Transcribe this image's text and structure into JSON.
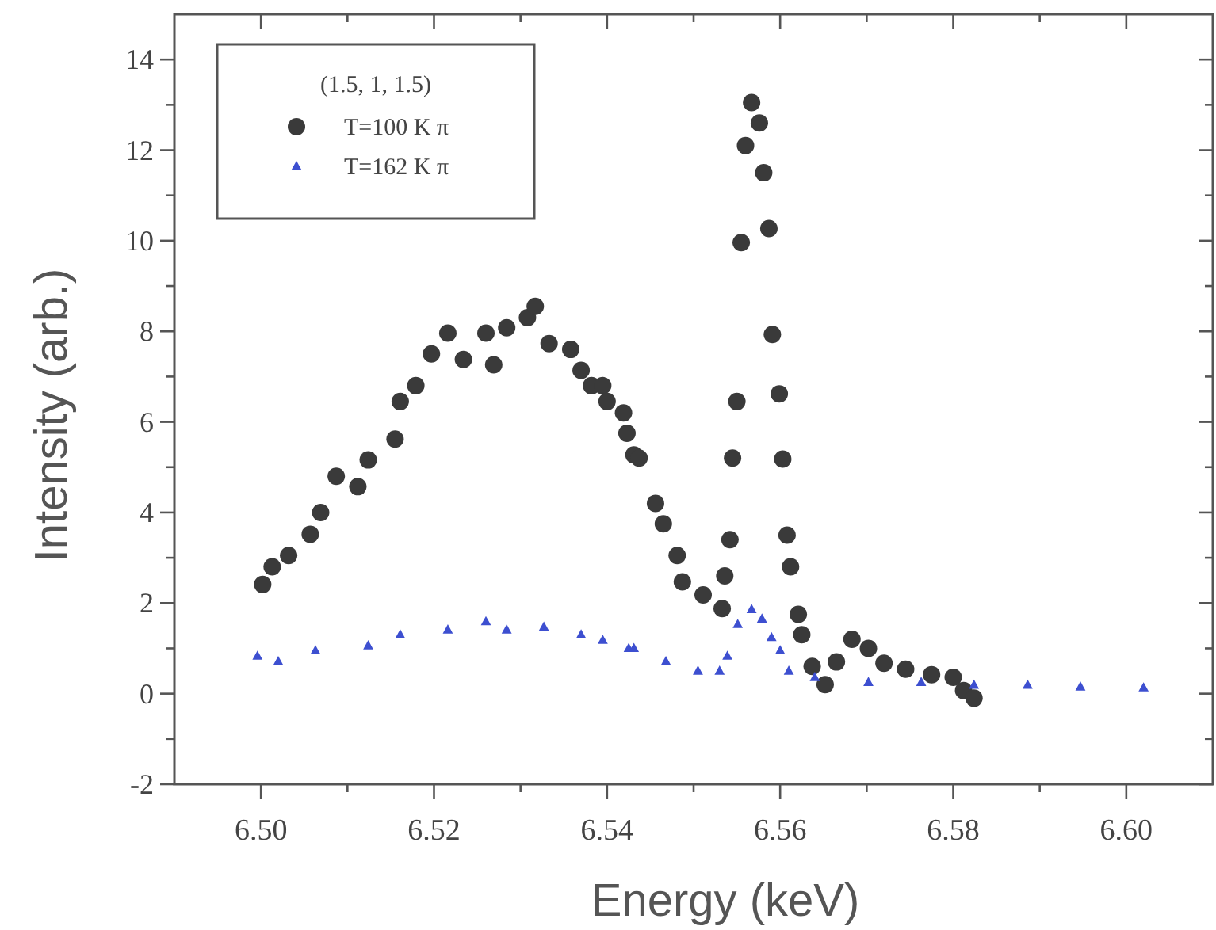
{
  "chart_data": {
    "type": "scatter",
    "xlabel": "Energy (keV)",
    "ylabel": "Intensity (arb.)",
    "legend_title": "(1.5, 1, 1.5)",
    "legend": "top left",
    "grid": false,
    "xlim": [
      6.49,
      6.61
    ],
    "ylim": [
      -2,
      15
    ],
    "xticks": [
      {
        "value": 6.5,
        "label": "6.50"
      },
      {
        "value": 6.51,
        "label": null
      },
      {
        "value": 6.52,
        "label": "6.52"
      },
      {
        "value": 6.53,
        "label": null
      },
      {
        "value": 6.54,
        "label": "6.54"
      },
      {
        "value": 6.55,
        "label": null
      },
      {
        "value": 6.56,
        "label": "6.56"
      },
      {
        "value": 6.57,
        "label": null
      },
      {
        "value": 6.58,
        "label": "6.58"
      },
      {
        "value": 6.59,
        "label": null
      },
      {
        "value": 6.6,
        "label": "6.60"
      }
    ],
    "yticks": [
      -2,
      {
        "value": -1,
        "label": null
      },
      0,
      {
        "value": 1,
        "label": null
      },
      2,
      {
        "value": 3,
        "label": null
      },
      4,
      {
        "value": 5,
        "label": null
      },
      6,
      {
        "value": 7,
        "label": null
      },
      8,
      {
        "value": 9,
        "label": null
      },
      10,
      {
        "value": 11,
        "label": null
      },
      12,
      {
        "value": 13,
        "label": null
      },
      14
    ],
    "series": [
      {
        "name": "T=100 K π",
        "color": "#3a3a3a",
        "marker": "circle",
        "x": [
          6.5002,
          6.5013,
          6.5032,
          6.5057,
          6.5069,
          6.5087,
          6.5112,
          6.5124,
          6.5155,
          6.5161,
          6.5179,
          6.5197,
          6.5216,
          6.5234,
          6.526,
          6.5269,
          6.5284,
          6.5308,
          6.5317,
          6.5333,
          6.5358,
          6.537,
          6.5382,
          6.5395,
          6.54,
          6.5419,
          6.5423,
          6.5431,
          6.5437,
          6.5456,
          6.5465,
          6.5481,
          6.5487,
          6.5511,
          6.5533,
          6.5536,
          6.5542,
          6.5545,
          6.555,
          6.5555,
          6.556,
          6.5567,
          6.5576,
          6.5581,
          6.5587,
          6.5591,
          6.5599,
          6.5603,
          6.5608,
          6.5612,
          6.5621,
          6.5625,
          6.5637,
          6.5652,
          6.5665,
          6.5683,
          6.5702,
          6.572,
          6.5745,
          6.5775,
          6.58,
          6.5812,
          6.5824
        ],
        "values": [
          2.41,
          2.8,
          3.05,
          3.52,
          4.0,
          4.8,
          4.57,
          5.16,
          5.62,
          6.45,
          6.8,
          7.5,
          7.96,
          7.38,
          7.96,
          7.26,
          8.08,
          8.3,
          8.55,
          7.73,
          7.6,
          7.14,
          6.8,
          6.8,
          6.45,
          6.2,
          5.75,
          5.27,
          5.2,
          4.2,
          3.75,
          3.05,
          2.47,
          2.18,
          1.88,
          2.6,
          3.4,
          5.2,
          6.45,
          9.96,
          12.1,
          13.05,
          12.6,
          11.5,
          10.27,
          7.93,
          6.62,
          5.18,
          3.5,
          2.8,
          1.75,
          1.3,
          0.6,
          0.2,
          0.7,
          1.2,
          1.0,
          0.67,
          0.54,
          0.42,
          0.36,
          0.07,
          -0.1
        ]
      },
      {
        "name": "T=162 K π",
        "color": "#3d4fd0",
        "marker": "triangle",
        "x": [
          6.4996,
          6.502,
          6.5063,
          6.5124,
          6.5161,
          6.5216,
          6.526,
          6.5284,
          6.5327,
          6.537,
          6.5395,
          6.5425,
          6.5431,
          6.5468,
          6.5505,
          6.553,
          6.5539,
          6.5551,
          6.5567,
          6.5579,
          6.559,
          6.56,
          6.561,
          6.564,
          6.5702,
          6.5763,
          6.5824,
          6.5886,
          6.5947,
          6.602
        ],
        "values": [
          0.83,
          0.71,
          0.95,
          1.06,
          1.3,
          1.41,
          1.59,
          1.41,
          1.47,
          1.3,
          1.18,
          1.0,
          1.0,
          0.71,
          0.5,
          0.5,
          0.83,
          1.53,
          1.86,
          1.65,
          1.24,
          0.95,
          0.5,
          0.36,
          0.25,
          0.25,
          0.19,
          0.19,
          0.15,
          0.13
        ]
      }
    ]
  }
}
